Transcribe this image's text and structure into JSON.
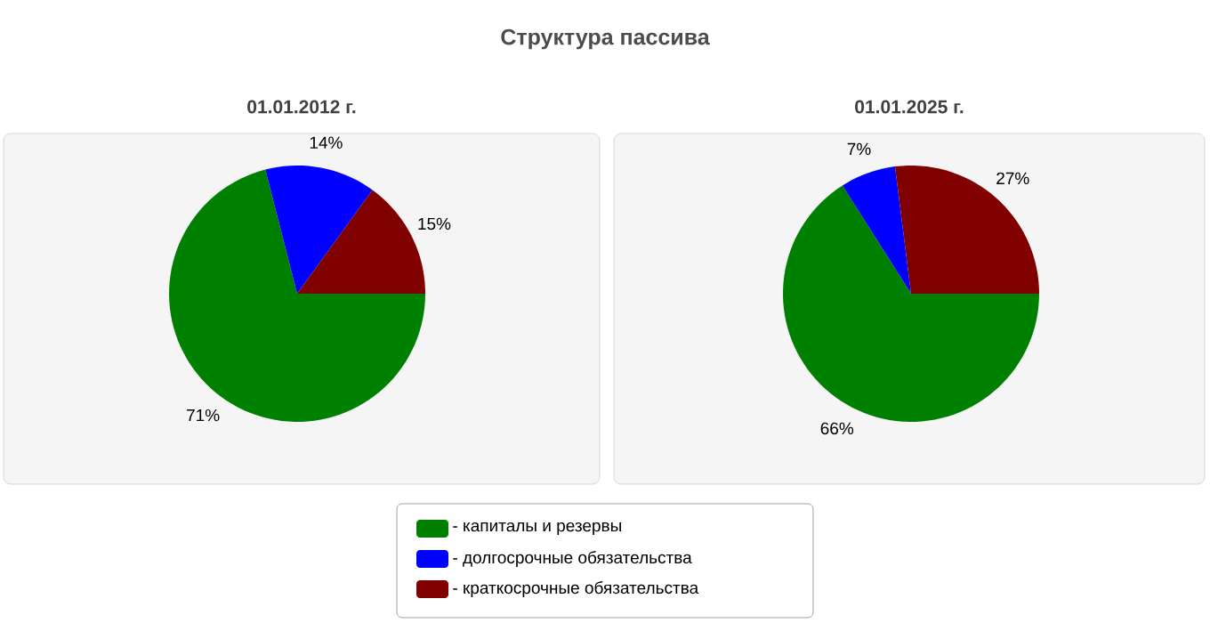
{
  "chart_data": [
    {
      "type": "pie",
      "title": "Структура пассива",
      "subtitle": "01.01.2012 г.",
      "categories": [
        "- капиталы и резервы",
        "- долгосрочные обязательства",
        "- краткосрочные обязательства"
      ],
      "values": [
        71,
        14,
        15
      ],
      "colors": [
        "#008000",
        "#0000ff",
        "#800000"
      ],
      "value_labels": [
        "71%",
        "14%",
        "15%"
      ],
      "legend": "bottom"
    },
    {
      "type": "pie",
      "subtitle": "01.01.2025 г.",
      "values": [
        66,
        7,
        27
      ],
      "colors": [
        "#008000",
        "#0000ff",
        "#800000"
      ],
      "value_labels": [
        "66%",
        "7%",
        "27%"
      ]
    }
  ]
}
